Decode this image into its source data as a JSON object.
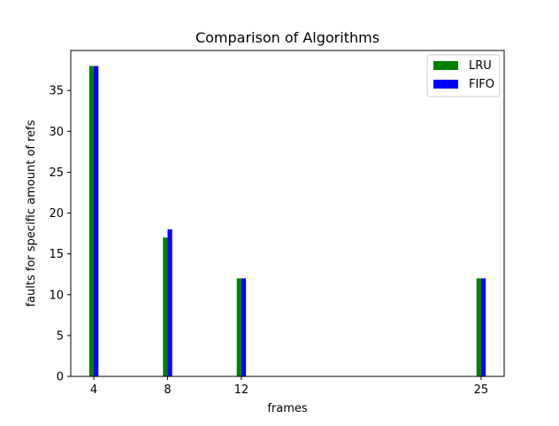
{
  "chart_data": {
    "type": "bar",
    "title": "Comparison of Algorithms",
    "xlabel": "frames",
    "ylabel": "faults for specific amount of refs",
    "x": [
      4,
      8,
      12,
      25
    ],
    "x_tick_labels": [
      "4",
      "8",
      "12",
      "25"
    ],
    "xlim": [
      2.75,
      26.25
    ],
    "ylim": [
      0,
      39.9
    ],
    "y_ticks": [
      0,
      5,
      10,
      15,
      20,
      25,
      30,
      35
    ],
    "y_tick_labels": [
      "0",
      "5",
      "10",
      "15",
      "20",
      "25",
      "30",
      "35"
    ],
    "series": [
      {
        "name": "LRU",
        "color": "#008000",
        "values": [
          38,
          17,
          12,
          12
        ]
      },
      {
        "name": "FIFO",
        "color": "#0000ff",
        "values": [
          38,
          18,
          12,
          12
        ]
      }
    ],
    "grid": false,
    "legend_position": "top-right"
  }
}
